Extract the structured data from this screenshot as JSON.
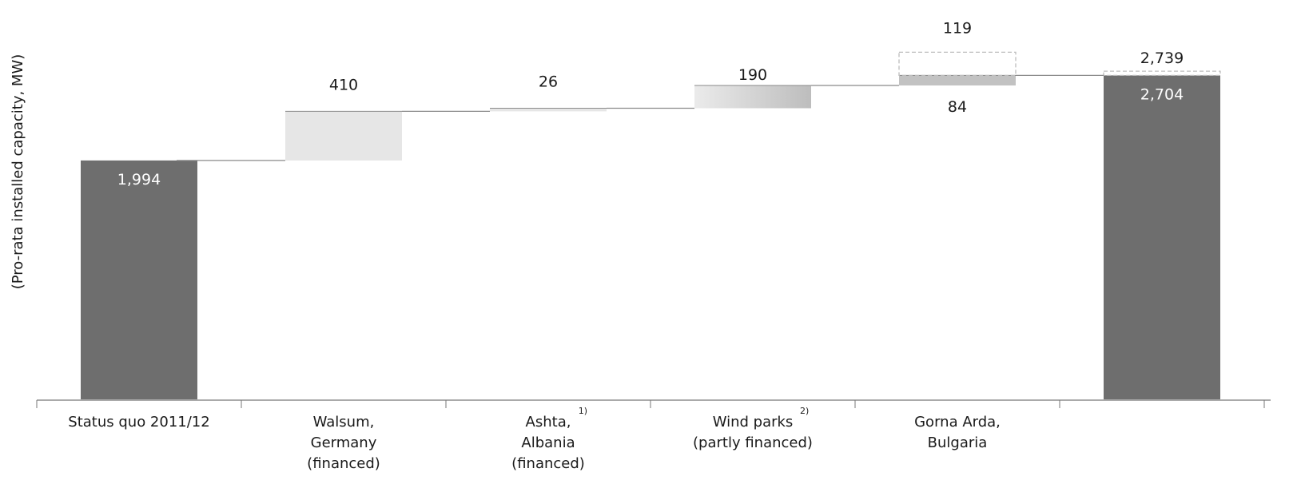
{
  "chart_data": {
    "type": "bar",
    "subtype": "waterfall",
    "ylabel": "(Pro-rata installed capacity, MW)",
    "categories": [
      {
        "lines": [
          "Status quo 2011/12"
        ],
        "footnote": ""
      },
      {
        "lines": [
          "Walsum,",
          "Germany",
          "(financed)"
        ],
        "footnote": ""
      },
      {
        "lines": [
          "Ashta,",
          "Albania",
          "(financed)"
        ],
        "footnote": "1)"
      },
      {
        "lines": [
          "Wind parks",
          "(partly financed)"
        ],
        "footnote": "2)"
      },
      {
        "lines": [
          "Gorna Arda,",
          "Bulgaria"
        ],
        "footnote": ""
      },
      {
        "lines": [
          ""
        ],
        "footnote": ""
      }
    ],
    "bars": [
      {
        "kind": "total",
        "start": 0,
        "end": 1994,
        "label": "1,994",
        "label_pos": "inside",
        "color": "#6e6e6e"
      },
      {
        "kind": "increase",
        "start": 1994,
        "end": 2404,
        "label": "410",
        "label_pos": "above",
        "color": "#e6e6e6"
      },
      {
        "kind": "increase",
        "start": 2404,
        "end": 2430,
        "label": "26",
        "label_pos": "above",
        "color": "#e6e6e6"
      },
      {
        "kind": "increase",
        "start": 2430,
        "end": 2620,
        "label": "190",
        "label_pos": "top",
        "gradient": [
          "#ebebeb",
          "#bdbdbd"
        ]
      },
      {
        "kind": "increase",
        "start": 2620,
        "end": 2704,
        "label": "84",
        "label_pos": "below",
        "color": "#c2c2c2",
        "potential": {
          "end": 2739,
          "label": "119"
        }
      },
      {
        "kind": "total",
        "start": 0,
        "end": 2704,
        "label": "2,704",
        "label_pos": "inside",
        "color": "#6e6e6e",
        "potential": {
          "end": 2739,
          "label": "2,739"
        }
      }
    ],
    "ylim": [
      0,
      2950
    ],
    "grid": false,
    "legend": "none"
  }
}
